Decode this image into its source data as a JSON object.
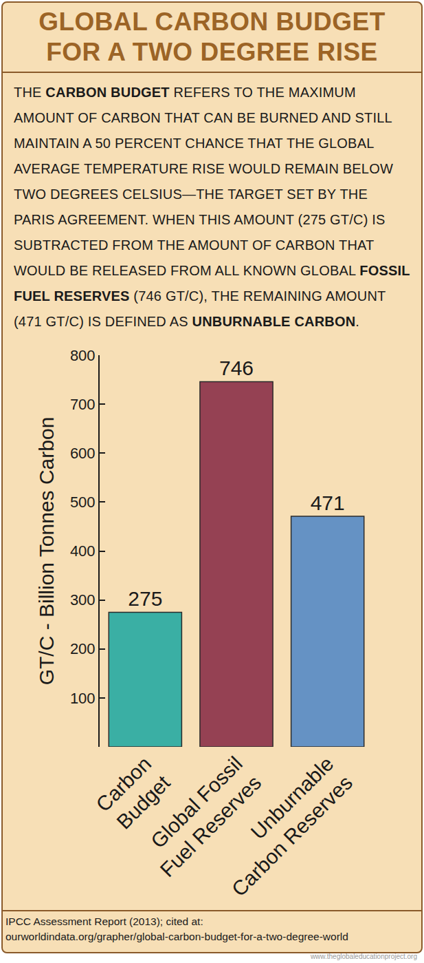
{
  "header": {
    "title_lines": [
      "GLOBAL CARBON BUDGET",
      "FOR A TWO DEGREE RISE"
    ]
  },
  "description": [
    {
      "text": "THE "
    },
    {
      "strong": "CARBON BUDGET"
    },
    {
      "text": " REFERS TO THE MAXIMUM AMOUNT OF CARBON THAT CAN BE BURNED AND STILL MAINTAIN A 50 PERCENT CHANCE THAT THE GLOBAL AVERAGE TEMPERATURE RISE WOULD REMAIN BELOW TWO DEGREES CELSIUS—THE TARGET SET BY THE PARIS AGREEMENT. WHEN THIS AMOUNT (275 GT/C) IS SUBTRACTED FROM THE AMOUNT OF CARBON THAT WOULD BE RELEASED FROM ALL KNOWN GLOBAL "
    },
    {
      "strong": "FOSSIL FUEL RESERVES"
    },
    {
      "text": " (746 GT/C), THE REMAINING AMOUNT (471 GT/C) IS DEFINED AS "
    },
    {
      "strong": "UNBURNABLE CARBON"
    },
    {
      "text": "."
    }
  ],
  "chart_data": {
    "type": "bar",
    "y_label": "GT/C - Billion Tonnes Carbon",
    "categories": [
      "Carbon Budget",
      "Global Fossil Fuel Reserves",
      "Unburnable Carbon Reserves"
    ],
    "values": [
      275,
      746,
      471
    ],
    "colors": [
      "#3aafa4",
      "#954153",
      "#6592c4"
    ],
    "ylim": [
      0,
      800
    ],
    "yticks": [
      100,
      200,
      300,
      400,
      500,
      600,
      700,
      800
    ],
    "grid": false,
    "data_labels": true
  },
  "source": [
    "IPCC Assessment Report (2013); cited at:",
    "ourworldindata.org/grapher/global-carbon-budget-for-a-two-degree-world"
  ],
  "watermark": "www.theglobaleducationproject.org"
}
